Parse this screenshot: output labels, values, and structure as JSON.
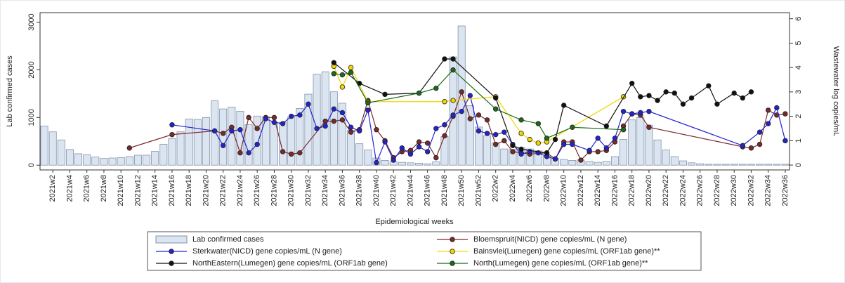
{
  "chart_data": {
    "type": "bar",
    "y_label": "Lab confirmed cases",
    "y2_label": "Wastewater log copies/mL",
    "x_label": "Epidemiological weeks",
    "categories": [
      null,
      "2021w2",
      null,
      "2021w4",
      null,
      "2021w6",
      null,
      "2021w8",
      null,
      "2021w10",
      null,
      "2021w12",
      null,
      "2021w14",
      null,
      "2021w16",
      null,
      "2021w18",
      null,
      "2021w20",
      null,
      "2021w22",
      null,
      "2021w24",
      null,
      "2021w26",
      null,
      "2021w28",
      null,
      "2021w30",
      null,
      "2021w32",
      null,
      "2021w34",
      null,
      "2021w36",
      null,
      "2021w38",
      null,
      "2021w40",
      null,
      "2021w42",
      null,
      "2021w44",
      null,
      "2021w46",
      null,
      "2021w48",
      null,
      "2021w50",
      null,
      "2021w52",
      null,
      "2022w2",
      null,
      "2022w4",
      null,
      "2022w6",
      null,
      "2022w8",
      null,
      "2022w10",
      null,
      "2022w12",
      null,
      "2022w14",
      null,
      "2022w16",
      null,
      "2022w18",
      null,
      "2022w20",
      null,
      "2022w22",
      null,
      "2022w24",
      null,
      "2022w26",
      null,
      "2022w28",
      null,
      "2022w30",
      null,
      "2022w32",
      null,
      "2022w34",
      null,
      "2022w36"
    ],
    "ylim": [
      -100,
      3200
    ],
    "yticks": [
      0,
      1000,
      2000,
      3000
    ],
    "y2lim": [
      -0.2,
      6.25
    ],
    "y2ticks": [
      0,
      1,
      2,
      3,
      4,
      5,
      6
    ],
    "series": [
      {
        "name": "Lab confirmed cases",
        "type": "bar",
        "color": "#dbe5f1",
        "values": [
          820,
          700,
          530,
          330,
          240,
          220,
          170,
          140,
          150,
          160,
          180,
          210,
          210,
          290,
          440,
          560,
          700,
          970,
          960,
          1000,
          1350,
          1180,
          1220,
          1130,
          850,
          1030,
          1010,
          900,
          900,
          1010,
          1190,
          1490,
          1910,
          1960,
          1540,
          1300,
          730,
          450,
          320,
          150,
          100,
          70,
          60,
          50,
          40,
          30,
          70,
          600,
          2270,
          2920,
          1250,
          800,
          620,
          470,
          340,
          330,
          370,
          340,
          300,
          190,
          140,
          120,
          100,
          110,
          80,
          60,
          80,
          180,
          540,
          950,
          1000,
          840,
          530,
          320,
          180,
          90,
          50,
          30,
          20,
          20,
          20,
          20,
          20,
          20,
          20,
          20,
          20,
          20
        ]
      },
      {
        "name": "Bloemspruit(NICD) gene copies/mL (N gene)",
        "type": "line",
        "axis": "y2",
        "color": "#7b2a2a",
        "x": [
          "2021w11",
          "2021w16",
          "2021w21",
          "2021w22",
          "2021w23",
          "2021w24",
          "2021w25",
          "2021w26",
          "2021w27",
          "2021w28",
          "2021w29",
          "2021w30",
          "2021w31",
          "2021w34",
          "2021w35",
          "2021w36",
          "2021w37",
          "2021w38",
          "2021w39",
          "2021w40",
          "2021w41",
          "2021w42",
          "2021w43",
          "2021w44",
          "2021w45",
          "2021w46",
          "2021w47",
          "2021w48",
          "2021w49",
          "2021w50",
          "2021w51",
          "2021w52",
          "2022w1",
          "2022w2",
          "2022w3",
          "2022w4",
          "2022w5",
          "2022w6",
          "2022w8",
          "2022w9",
          "2022w10",
          "2022w11",
          "2022w12",
          "2022w13",
          "2022w14",
          "2022w15",
          "2022w16",
          "2022w17",
          "2022w18",
          "2022w19",
          "2022w20",
          "2022w31",
          "2022w32",
          "2022w33",
          "2022w34",
          "2022w35",
          "2022w36"
        ],
        "values": [
          0.7,
          1.25,
          1.4,
          1.3,
          1.55,
          0.5,
          1.95,
          1.5,
          1.95,
          1.95,
          0.55,
          0.45,
          0.5,
          1.8,
          1.8,
          1.85,
          1.35,
          1.45,
          2.65,
          1.45,
          1.0,
          0.3,
          0.55,
          0.6,
          0.95,
          0.9,
          0.3,
          1.2,
          2.0,
          3.0,
          1.9,
          2.05,
          1.85,
          0.85,
          1.0,
          0.55,
          0.5,
          0.45,
          0.5,
          0.25,
          0.95,
          0.95,
          0.2,
          0.55,
          0.55,
          0.6,
          0.95,
          1.6,
          2.1,
          2.05,
          1.55,
          0.75,
          0.7,
          0.85,
          2.25,
          2.05,
          2.1
        ]
      },
      {
        "name": "Sterkwater(NICD) gene copies/mL (N gene)",
        "type": "line",
        "axis": "y2",
        "color": "#2323d0",
        "x": [
          "2021w16",
          "2021w21",
          "2021w22",
          "2021w23",
          "2021w24",
          "2021w25",
          "2021w26",
          "2021w27",
          "2021w28",
          "2021w29",
          "2021w30",
          "2021w31",
          "2021w32",
          "2021w33",
          "2021w34",
          "2021w35",
          "2021w36",
          "2021w37",
          "2021w38",
          "2021w39",
          "2021w40",
          "2021w41",
          "2021w42",
          "2021w43",
          "2021w44",
          "2021w45",
          "2021w46",
          "2021w47",
          "2021w48",
          "2021w49",
          "2021w50",
          "2021w51",
          "2021w52",
          "2022w1",
          "2022w2",
          "2022w3",
          "2022w4",
          "2022w5",
          "2022w6",
          "2022w7",
          "2022w8",
          "2022w9",
          "2022w10",
          "2022w11",
          "2022w13",
          "2022w14",
          "2022w15",
          "2022w16",
          "2022w17",
          "2022w18",
          "2022w19",
          "2022w20",
          "2022w31",
          "2022w33",
          "2022w34",
          "2022w35",
          "2022w36"
        ],
        "values": [
          1.65,
          1.4,
          0.8,
          1.4,
          1.45,
          0.5,
          0.85,
          1.9,
          1.75,
          1.7,
          2.0,
          2.05,
          2.5,
          1.5,
          1.6,
          2.3,
          2.15,
          1.55,
          1.4,
          2.25,
          0.1,
          0.95,
          0.2,
          0.7,
          0.45,
          0.75,
          0.55,
          1.5,
          1.65,
          2.05,
          2.2,
          2.85,
          1.4,
          1.3,
          1.25,
          1.35,
          0.85,
          0.45,
          0.55,
          0.5,
          0.35,
          0.25,
          0.85,
          0.85,
          0.6,
          1.1,
          0.7,
          1.1,
          2.2,
          2.1,
          2.15,
          2.2,
          0.8,
          1.35,
          1.7,
          2.35,
          1.0
        ]
      },
      {
        "name": "Bainsvlei(Lumegen) gene copies/mL (ORF1ab gene)**",
        "type": "line",
        "axis": "y2",
        "color": "#f2d600",
        "x": [
          "2021w35",
          "2021w36",
          "2021w37",
          "2021w39",
          "2021w48",
          "2021w49",
          "2022w2",
          "2022w5",
          "2022w6",
          "2022w7",
          "2022w8",
          "2022w17"
        ],
        "values": [
          4.05,
          3.2,
          4.0,
          2.6,
          2.6,
          2.65,
          2.8,
          1.3,
          1.05,
          0.9,
          0.95,
          2.8
        ]
      },
      {
        "name": "NorthEastern(Lumegen) gene copies/mL (ORF1ab gene)",
        "type": "line",
        "axis": "y2",
        "color": "#111111",
        "x": [
          "2021w35",
          "2021w38",
          "2021w41",
          "2021w45",
          "2021w48",
          "2021w49",
          "2022w2",
          "2022w4",
          "2022w5",
          "2022w8",
          "2022w9",
          "2022w10",
          "2022w15",
          "2022w18",
          "2022w19",
          "2022w20",
          "2022w21",
          "2022w22",
          "2022w23",
          "2022w24",
          "2022w25",
          "2022w27",
          "2022w28",
          "2022w30",
          "2022w31",
          "2022w32"
        ],
        "values": [
          4.2,
          3.35,
          2.9,
          2.95,
          4.35,
          4.35,
          2.75,
          0.8,
          0.65,
          0.5,
          1.05,
          2.45,
          1.6,
          3.35,
          2.8,
          2.85,
          2.65,
          3.0,
          2.95,
          2.5,
          2.75,
          3.25,
          2.5,
          2.95,
          2.75,
          3.0
        ]
      },
      {
        "name": "North(Lumegen) gene copies/mL (ORF1ab gene)**",
        "type": "line",
        "axis": "y2",
        "color": "#1b6b1b",
        "x": [
          "2021w35",
          "2021w36",
          "2021w37",
          "2021w39",
          "2021w45",
          "2021w47",
          "2021w49",
          "2022w2",
          "2022w5",
          "2022w7",
          "2022w8",
          "2022w11",
          "2022w17"
        ],
        "values": [
          3.75,
          3.7,
          3.8,
          2.55,
          2.95,
          3.15,
          3.9,
          2.3,
          1.85,
          1.7,
          1.1,
          1.55,
          1.45
        ]
      }
    ]
  }
}
